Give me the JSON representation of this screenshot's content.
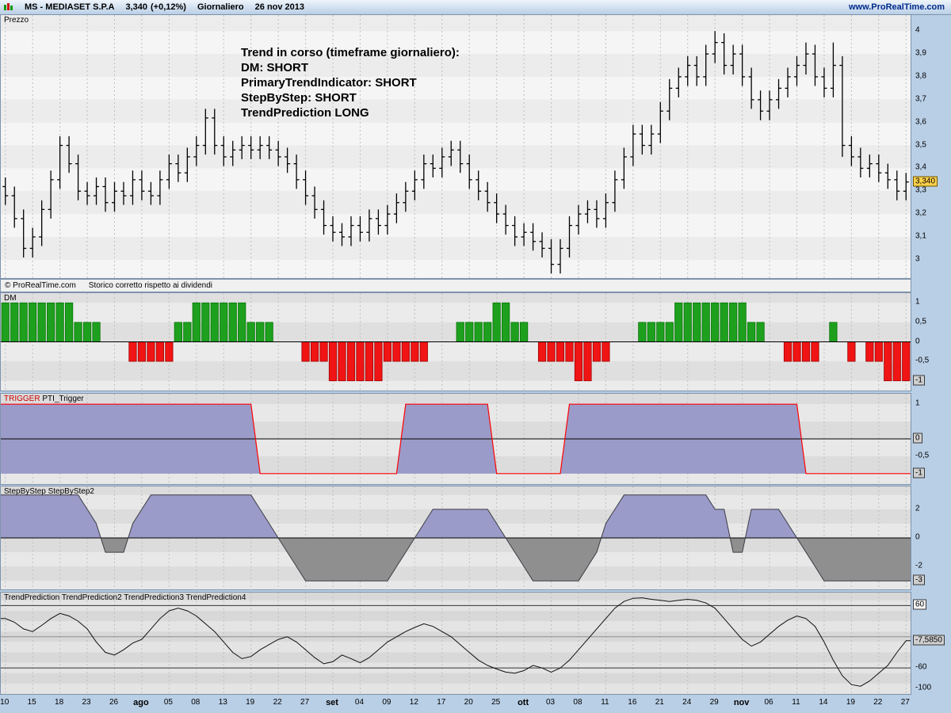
{
  "header": {
    "title": "MS - MEDIASET S.P.A",
    "price": "3,340",
    "change": "(+0,12%)",
    "timeframe": "Giornaliero",
    "date": "26 nov 2013",
    "site": "www.ProRealTime.com"
  },
  "panels": {
    "price": {
      "name": "Prezzo"
    },
    "dm": {
      "name": "DM"
    },
    "trigger": {
      "name1": "TRIGGER",
      "name2": "PTI_Trigger"
    },
    "sbs": {
      "name1": "StepByStep",
      "name2": "StepByStep2"
    },
    "tp": {
      "name1": "TrendPrediction",
      "name2": "TrendPrediction2",
      "name3": "TrendPrediction3",
      "name4": "TrendPrediction4"
    }
  },
  "price_panel": {
    "annotation": [
      "Trend in corso (timeframe giornaliero):",
      "DM: SHORT",
      "PrimaryTrendIndicator: SHORT",
      "StepByStep: SHORT",
      "TrendPrediction LONG"
    ],
    "copyright": "© ProRealTime.com",
    "copyright_note": "Storico corretto rispetto ai dividendi"
  },
  "xaxis": {
    "tick_every": 3,
    "labels": [
      {
        "t": "10"
      },
      {
        "t": "15"
      },
      {
        "t": "18"
      },
      {
        "t": "23"
      },
      {
        "t": "26"
      },
      {
        "t": "ago",
        "bold": true
      },
      {
        "t": "05"
      },
      {
        "t": "08"
      },
      {
        "t": "13"
      },
      {
        "t": "19"
      },
      {
        "t": "22"
      },
      {
        "t": "27"
      },
      {
        "t": "set",
        "bold": true
      },
      {
        "t": "04"
      },
      {
        "t": "09"
      },
      {
        "t": "12"
      },
      {
        "t": "17"
      },
      {
        "t": "20"
      },
      {
        "t": "25"
      },
      {
        "t": "ott",
        "bold": true
      },
      {
        "t": "03"
      },
      {
        "t": "08"
      },
      {
        "t": "11"
      },
      {
        "t": "16"
      },
      {
        "t": "21"
      },
      {
        "t": "24"
      },
      {
        "t": "29"
      },
      {
        "t": "nov",
        "bold": true
      },
      {
        "t": "06"
      },
      {
        "t": "11"
      },
      {
        "t": "14"
      },
      {
        "t": "19"
      },
      {
        "t": "22"
      },
      {
        "t": "27"
      }
    ]
  },
  "chart_data": [
    {
      "id": "price",
      "type": "ohlc-bars",
      "title": "Prezzo",
      "ylim": [
        2.92,
        4.07
      ],
      "last": 3.34,
      "yticks": [
        {
          "v": 4,
          "t": "4"
        },
        {
          "v": 3.9,
          "t": "3,9"
        },
        {
          "v": 3.8,
          "t": "3,8"
        },
        {
          "v": 3.7,
          "t": "3,7"
        },
        {
          "v": 3.6,
          "t": "3,6"
        },
        {
          "v": 3.5,
          "t": "3,5"
        },
        {
          "v": 3.4,
          "t": "3,4"
        },
        {
          "v": 3.3,
          "t": "3,3"
        },
        {
          "v": 3.2,
          "t": "3,2"
        },
        {
          "v": 3.1,
          "t": "3,1"
        },
        {
          "v": 3.0,
          "t": "3"
        }
      ],
      "ycurrent": [
        {
          "v": 3.34,
          "t": "3,340",
          "style": "yellow"
        }
      ],
      "open": [
        3.32,
        3.28,
        3.18,
        3.05,
        3.1,
        3.22,
        3.35,
        3.5,
        3.42,
        3.3,
        3.28,
        3.32,
        3.25,
        3.3,
        3.28,
        3.35,
        3.3,
        3.28,
        3.35,
        3.42,
        3.38,
        3.45,
        3.5,
        3.62,
        3.5,
        3.45,
        3.48,
        3.5,
        3.48,
        3.5,
        3.48,
        3.45,
        3.42,
        3.35,
        3.28,
        3.22,
        3.15,
        3.12,
        3.1,
        3.15,
        3.12,
        3.18,
        3.15,
        3.2,
        3.25,
        3.3,
        3.35,
        3.42,
        3.4,
        3.45,
        3.48,
        3.42,
        3.35,
        3.3,
        3.25,
        3.2,
        3.15,
        3.1,
        3.12,
        3.08,
        3.05,
        2.98,
        3.05,
        3.15,
        3.2,
        3.22,
        3.18,
        3.25,
        3.35,
        3.45,
        3.55,
        3.5,
        3.55,
        3.65,
        3.75,
        3.8,
        3.85,
        3.8,
        3.9,
        3.95,
        3.85,
        3.9,
        3.8,
        3.7,
        3.65,
        3.7,
        3.75,
        3.8,
        3.85,
        3.9,
        3.8,
        3.75,
        3.85,
        3.5,
        3.45,
        3.4,
        3.42,
        3.38,
        3.35,
        3.3
      ],
      "high": [
        3.36,
        3.32,
        3.22,
        3.14,
        3.26,
        3.39,
        3.54,
        3.54,
        3.46,
        3.34,
        3.36,
        3.36,
        3.34,
        3.34,
        3.39,
        3.39,
        3.34,
        3.39,
        3.46,
        3.46,
        3.49,
        3.54,
        3.66,
        3.66,
        3.54,
        3.52,
        3.54,
        3.54,
        3.54,
        3.54,
        3.52,
        3.49,
        3.46,
        3.39,
        3.32,
        3.26,
        3.19,
        3.16,
        3.19,
        3.19,
        3.22,
        3.22,
        3.24,
        3.29,
        3.34,
        3.39,
        3.46,
        3.46,
        3.49,
        3.52,
        3.52,
        3.46,
        3.39,
        3.34,
        3.29,
        3.24,
        3.19,
        3.16,
        3.16,
        3.12,
        3.09,
        3.09,
        3.19,
        3.24,
        3.26,
        3.26,
        3.29,
        3.39,
        3.49,
        3.59,
        3.59,
        3.59,
        3.69,
        3.79,
        3.84,
        3.89,
        3.89,
        3.94,
        4.0,
        3.99,
        3.94,
        3.94,
        3.84,
        3.74,
        3.74,
        3.79,
        3.84,
        3.89,
        3.95,
        3.94,
        3.84,
        3.95,
        3.89,
        3.54,
        3.49,
        3.46,
        3.46,
        3.42,
        3.39,
        3.38
      ],
      "low": [
        3.24,
        3.14,
        3.01,
        3.01,
        3.06,
        3.18,
        3.31,
        3.38,
        3.26,
        3.24,
        3.24,
        3.21,
        3.21,
        3.24,
        3.24,
        3.26,
        3.24,
        3.24,
        3.31,
        3.34,
        3.34,
        3.41,
        3.46,
        3.46,
        3.41,
        3.41,
        3.44,
        3.44,
        3.44,
        3.44,
        3.41,
        3.38,
        3.31,
        3.24,
        3.18,
        3.11,
        3.08,
        3.06,
        3.06,
        3.08,
        3.08,
        3.11,
        3.11,
        3.16,
        3.21,
        3.26,
        3.31,
        3.36,
        3.36,
        3.41,
        3.38,
        3.31,
        3.26,
        3.21,
        3.16,
        3.11,
        3.06,
        3.06,
        3.04,
        3.01,
        2.94,
        2.94,
        3.01,
        3.11,
        3.16,
        3.14,
        3.14,
        3.21,
        3.31,
        3.41,
        3.46,
        3.46,
        3.51,
        3.61,
        3.71,
        3.76,
        3.76,
        3.76,
        3.86,
        3.81,
        3.81,
        3.76,
        3.66,
        3.61,
        3.61,
        3.66,
        3.71,
        3.76,
        3.81,
        3.76,
        3.71,
        3.71,
        3.45,
        3.41,
        3.36,
        3.36,
        3.34,
        3.31,
        3.26,
        3.26
      ],
      "close": [
        3.28,
        3.18,
        3.05,
        3.1,
        3.22,
        3.35,
        3.5,
        3.42,
        3.3,
        3.28,
        3.32,
        3.25,
        3.3,
        3.28,
        3.35,
        3.3,
        3.28,
        3.35,
        3.42,
        3.38,
        3.45,
        3.5,
        3.62,
        3.5,
        3.45,
        3.48,
        3.5,
        3.48,
        3.5,
        3.48,
        3.45,
        3.42,
        3.35,
        3.28,
        3.22,
        3.15,
        3.12,
        3.1,
        3.15,
        3.12,
        3.18,
        3.15,
        3.2,
        3.25,
        3.3,
        3.35,
        3.42,
        3.4,
        3.45,
        3.48,
        3.42,
        3.35,
        3.3,
        3.25,
        3.2,
        3.15,
        3.1,
        3.12,
        3.08,
        3.05,
        2.98,
        3.05,
        3.15,
        3.2,
        3.22,
        3.18,
        3.25,
        3.35,
        3.45,
        3.55,
        3.5,
        3.55,
        3.65,
        3.75,
        3.8,
        3.85,
        3.8,
        3.9,
        3.95,
        3.85,
        3.9,
        3.8,
        3.7,
        3.65,
        3.7,
        3.75,
        3.8,
        3.85,
        3.9,
        3.8,
        3.75,
        3.85,
        3.5,
        3.45,
        3.4,
        3.42,
        3.38,
        3.35,
        3.3,
        3.34
      ]
    },
    {
      "id": "dm",
      "type": "bar",
      "title": "DM",
      "ylim": [
        -1.25,
        1.25
      ],
      "last": -1,
      "colors": {
        "pos": "#1ea01e",
        "neg": "#f01414"
      },
      "yticks": [
        {
          "v": 1,
          "t": "1"
        },
        {
          "v": 0.5,
          "t": "0,5"
        },
        {
          "v": 0,
          "t": "0"
        },
        {
          "v": -0.5,
          "t": "-0,5"
        }
      ],
      "ycurrent": [
        {
          "v": -1,
          "t": "-1",
          "style": "gray"
        }
      ],
      "values": [
        1,
        1,
        1,
        1,
        1,
        1,
        1,
        1,
        0.5,
        0.5,
        0.5,
        0,
        0,
        0,
        -0.5,
        -0.5,
        -0.5,
        -0.5,
        -0.5,
        0.5,
        0.5,
        1,
        1,
        1,
        1,
        1,
        1,
        0.5,
        0.5,
        0.5,
        0,
        0,
        0,
        -0.5,
        -0.5,
        -0.5,
        -1,
        -1,
        -1,
        -1,
        -1,
        -1,
        -0.5,
        -0.5,
        -0.5,
        -0.5,
        -0.5,
        0,
        0,
        0,
        0.5,
        0.5,
        0.5,
        0.5,
        1,
        1,
        0.5,
        0.5,
        0,
        -0.5,
        -0.5,
        -0.5,
        -0.5,
        -1,
        -1,
        -0.5,
        -0.5,
        0,
        0,
        0,
        0.5,
        0.5,
        0.5,
        0.5,
        1,
        1,
        1,
        1,
        1,
        1,
        1,
        1,
        0.5,
        0.5,
        0,
        0,
        -0.5,
        -0.5,
        -0.5,
        -0.5,
        0,
        0.5,
        0,
        -0.5,
        0,
        -0.5,
        -0.5,
        -1,
        -1,
        -1
      ]
    },
    {
      "id": "pti_trigger",
      "type": "area",
      "title": "TRIGGER PTI_Trigger",
      "ylim": [
        -1.3,
        1.3
      ],
      "baseline": -1,
      "last": -1,
      "line_color": "#ff0000",
      "fill_color": "#9b9bc9",
      "yticks": [
        {
          "v": 1,
          "t": "1"
        },
        {
          "v": -0.5,
          "t": "-0,5"
        }
      ],
      "ycurrent": [
        {
          "v": 0,
          "t": "0",
          "style": "gray"
        },
        {
          "v": -1,
          "t": "-1",
          "style": "gray"
        }
      ],
      "values": [
        1,
        1,
        1,
        1,
        1,
        1,
        1,
        1,
        1,
        1,
        1,
        1,
        1,
        1,
        1,
        1,
        1,
        1,
        1,
        1,
        1,
        1,
        1,
        1,
        1,
        1,
        1,
        1,
        -1,
        -1,
        -1,
        -1,
        -1,
        -1,
        -1,
        -1,
        -1,
        -1,
        -1,
        -1,
        -1,
        -1,
        -1,
        -1,
        1,
        1,
        1,
        1,
        1,
        1,
        1,
        1,
        1,
        1,
        -1,
        -1,
        -1,
        -1,
        -1,
        -1,
        -1,
        -1,
        1,
        1,
        1,
        1,
        1,
        1,
        1,
        1,
        1,
        1,
        1,
        1,
        1,
        1,
        1,
        1,
        1,
        1,
        1,
        1,
        1,
        1,
        1,
        1,
        1,
        1,
        -1,
        -1,
        -1,
        -1,
        -1,
        -1,
        -1,
        -1,
        -1,
        -1,
        -1,
        -1
      ]
    },
    {
      "id": "stepbystep",
      "type": "area-step",
      "title": "StepByStep StepByStep2",
      "ylim": [
        -3.6,
        3.6
      ],
      "last": -3,
      "fill_pos": "#9b9bc9",
      "fill_neg": "#8f8f8f",
      "yticks": [
        {
          "v": 2,
          "t": "2"
        },
        {
          "v": 0,
          "t": "0"
        },
        {
          "v": -2,
          "t": "-2"
        }
      ],
      "ycurrent": [
        {
          "v": -3,
          "t": "-3",
          "style": "gray"
        }
      ],
      "values": [
        3,
        3,
        3,
        3,
        3,
        3,
        3,
        3,
        3,
        2,
        1,
        -1,
        -1,
        -1,
        1,
        2,
        3,
        3,
        3,
        3,
        3,
        3,
        3,
        3,
        3,
        3,
        3,
        3,
        2,
        1,
        0,
        -1,
        -2,
        -3,
        -3,
        -3,
        -3,
        -3,
        -3,
        -3,
        -3,
        -3,
        -3,
        -2,
        -1,
        0,
        1,
        2,
        2,
        2,
        2,
        2,
        2,
        2,
        1,
        0,
        -1,
        -2,
        -3,
        -3,
        -3,
        -3,
        -3,
        -3,
        -2,
        -1,
        1,
        2,
        3,
        3,
        3,
        3,
        3,
        3,
        3,
        3,
        3,
        3,
        2,
        2,
        -1,
        -1,
        2,
        2,
        2,
        2,
        1,
        0,
        -1,
        -2,
        -3,
        -3,
        -3,
        -3,
        -3,
        -3,
        -3,
        -3,
        -3,
        -3
      ]
    },
    {
      "id": "trendprediction",
      "type": "line",
      "title": "TrendPrediction TrendPrediction2 TrendPrediction3 TrendPrediction4",
      "ylim": [
        -110,
        85
      ],
      "ref_lines": [
        60,
        0,
        -60
      ],
      "last": -7.585,
      "last_label": "-7,5850",
      "yticks": [
        {
          "v": -60,
          "t": "-60"
        },
        {
          "v": -100,
          "t": "-100"
        }
      ],
      "ycurrent": [
        {
          "v": 60,
          "t": "60",
          "style": "box"
        },
        {
          "v": -7.585,
          "t": "-7,5850",
          "style": "gray"
        }
      ],
      "values": [
        35,
        28,
        15,
        10,
        22,
        35,
        45,
        40,
        30,
        15,
        -10,
        -30,
        -35,
        -25,
        -12,
        -5,
        15,
        35,
        50,
        55,
        50,
        40,
        25,
        10,
        -10,
        -30,
        -42,
        -38,
        -25,
        -15,
        -5,
        0,
        -10,
        -25,
        -40,
        -52,
        -48,
        -35,
        -42,
        -50,
        -40,
        -25,
        -10,
        0,
        10,
        18,
        25,
        20,
        10,
        0,
        -15,
        -30,
        -45,
        -55,
        -62,
        -68,
        -70,
        -65,
        -55,
        -60,
        -68,
        -60,
        -45,
        -25,
        -5,
        15,
        35,
        55,
        68,
        74,
        75,
        72,
        70,
        68,
        70,
        72,
        70,
        65,
        55,
        35,
        15,
        -5,
        -18,
        -10,
        5,
        20,
        32,
        40,
        35,
        20,
        -10,
        -45,
        -75,
        -92,
        -95,
        -85,
        -70,
        -55,
        -30,
        -7.585
      ]
    }
  ]
}
